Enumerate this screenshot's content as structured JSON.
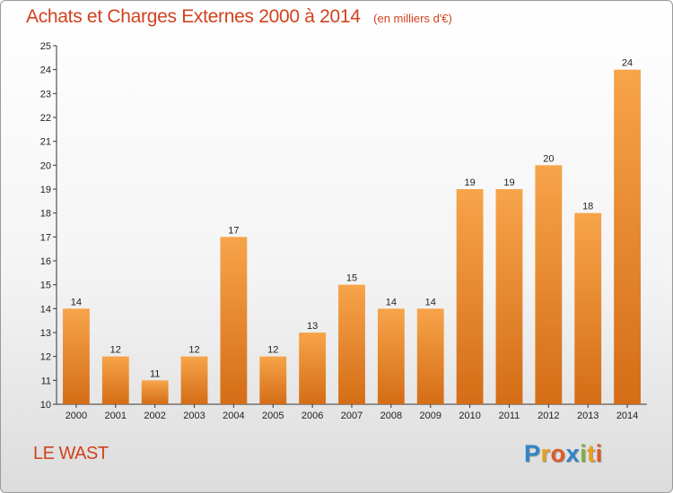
{
  "chart_data": {
    "type": "bar",
    "title": "Achats et Charges Externes 2000 à 2014",
    "unit_note": "(en milliers d'€)",
    "categories": [
      "2000",
      "2001",
      "2002",
      "2003",
      "2004",
      "2005",
      "2006",
      "2007",
      "2008",
      "2009",
      "2010",
      "2011",
      "2012",
      "2013",
      "2014"
    ],
    "values": [
      14,
      12,
      11,
      12,
      17,
      12,
      13,
      15,
      14,
      14,
      19,
      19,
      20,
      18,
      24
    ],
    "ylim": [
      10,
      25
    ],
    "yticks": [
      10,
      11,
      12,
      13,
      14,
      15,
      16,
      17,
      18,
      19,
      20,
      21,
      22,
      23,
      24,
      25
    ],
    "grid": false,
    "colors": {
      "bar_light": "#f7a44a",
      "bar_dark": "#d46d16",
      "axis": "#333333",
      "text": "#222222"
    }
  },
  "footer": {
    "commune": "LE WAST",
    "logo_letters": [
      {
        "ch": "P",
        "color": "#2e86c8"
      },
      {
        "ch": "r",
        "color": "#e8a020"
      },
      {
        "ch": "o",
        "color": "#e05a2a"
      },
      {
        "ch": "x",
        "color": "#2e86c8"
      },
      {
        "ch": "i",
        "color": "#7cb342"
      },
      {
        "ch": "t",
        "color": "#e8a020"
      },
      {
        "ch": "i",
        "color": "#e05a2a"
      }
    ]
  }
}
